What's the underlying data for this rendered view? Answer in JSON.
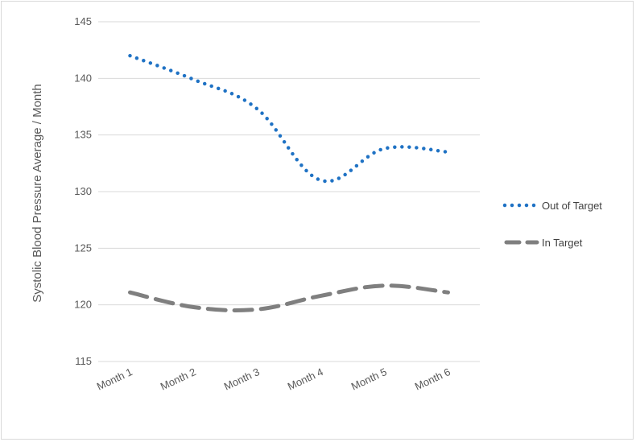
{
  "chart_data": {
    "type": "line",
    "categories": [
      "Month 1",
      "Month 2",
      "Month 3",
      "Month 4",
      "Month 5",
      "Month 6"
    ],
    "series": [
      {
        "name": "Out of Target",
        "values": [
          142.0,
          139.9,
          137.3,
          131.0,
          133.8,
          133.5
        ],
        "color": "#1f72c4",
        "style": "dotted"
      },
      {
        "name": "In Target",
        "values": [
          121.1,
          119.8,
          119.6,
          120.8,
          121.7,
          121.1
        ],
        "color": "#7f7f7f",
        "style": "dashed"
      }
    ],
    "ylabel": "Systolic Blood Pressure Average / Month",
    "xlabel": "",
    "ylim": [
      115,
      145
    ],
    "yticks": [
      "115",
      "120",
      "125",
      "130",
      "135",
      "140",
      "145"
    ],
    "grid": true,
    "legend": "right"
  }
}
